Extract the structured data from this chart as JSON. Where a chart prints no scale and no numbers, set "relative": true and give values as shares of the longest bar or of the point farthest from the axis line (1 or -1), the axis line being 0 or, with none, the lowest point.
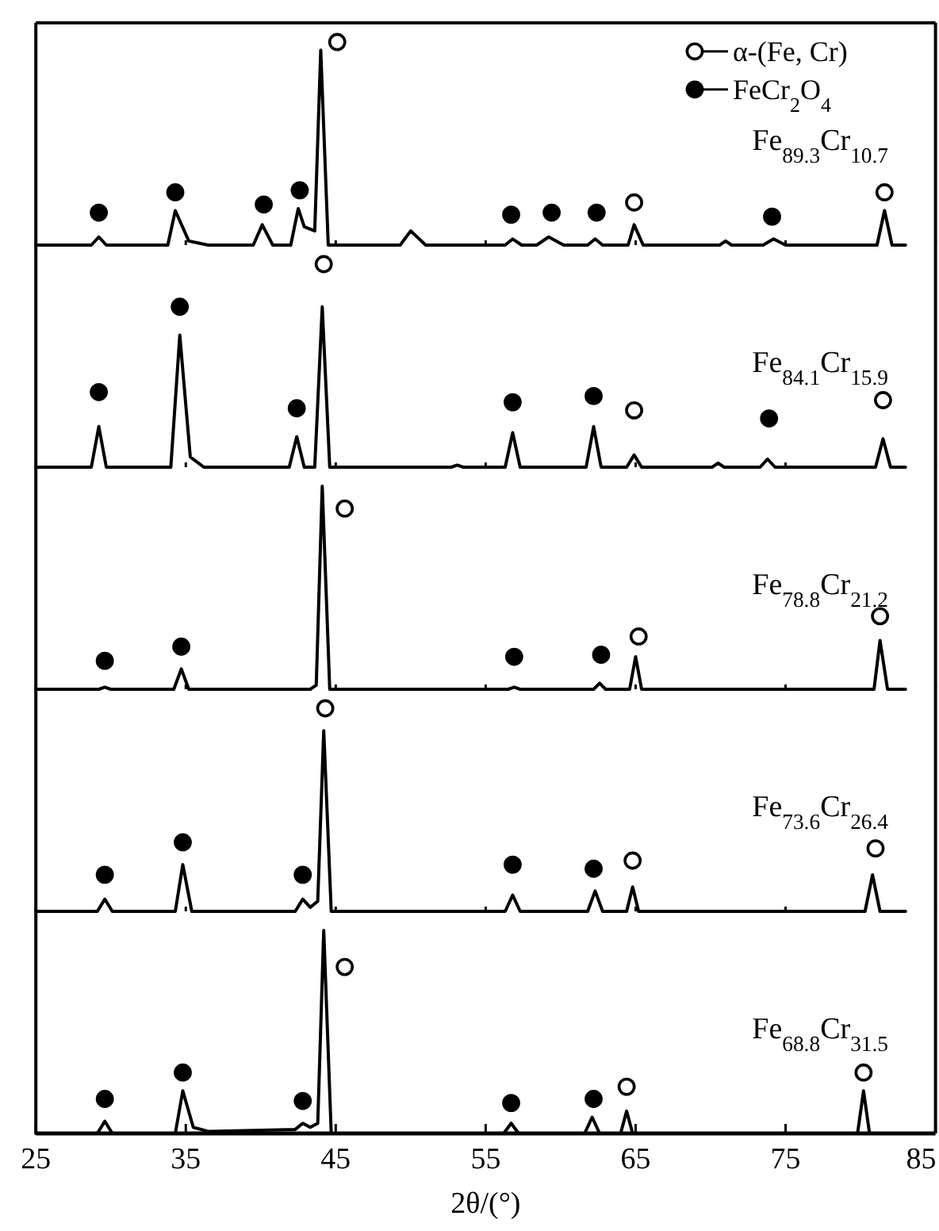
{
  "chart_data": [
    {
      "type": "line",
      "title": "Fe$_{89.3}$Cr$_{10.7}$",
      "xlim": [
        25,
        85
      ],
      "xticks": [
        25,
        35,
        45,
        55,
        65,
        75,
        85
      ],
      "relative": true,
      "tick_labels": false,
      "legend": "top right",
      "series": [
        {
          "color": "#000000",
          "x": [
            25,
            28.7,
            29.2,
            29.7,
            33.8,
            34.3,
            35.2,
            36.5,
            39.5,
            40.1,
            40.8,
            42.0,
            42.5,
            42.9,
            43.6,
            44.0,
            44.5,
            49.3,
            50.0,
            51.0,
            56.3,
            56.8,
            57.4,
            58.4,
            59.2,
            60.2,
            61.8,
            62.3,
            62.8,
            64.5,
            64.9,
            65.5,
            70.6,
            71.0,
            71.4,
            73.5,
            74.2,
            75.0,
            81.1,
            81.6,
            82.1,
            83
          ],
          "values": [
            0,
            0,
            0.04,
            0,
            0,
            0.17,
            0.02,
            0,
            0,
            0.1,
            0,
            0,
            0.18,
            0.09,
            0.07,
            0.96,
            0,
            0,
            0.07,
            0,
            0,
            0.03,
            0,
            0,
            0.04,
            0,
            0,
            0.03,
            0,
            0,
            0.1,
            0,
            0,
            0.02,
            0,
            0,
            0.03,
            0,
            0,
            0.17,
            0,
            0
          ]
        },
        {
          "type": "scatter",
          "name": "α-(Fe, Cr)",
          "marker": "circle",
          "color": "#ffffff",
          "x": [
            45.1,
            64.9,
            81.6
          ],
          "values": [
            1.0,
            0.21,
            0.26
          ]
        },
        {
          "type": "scatter",
          "name": "FeCr$_{2}$O$_{4}$",
          "marker": "circle",
          "color": "#000000",
          "x": [
            29.2,
            34.3,
            40.2,
            42.6,
            56.7,
            59.4,
            62.4,
            74.1
          ],
          "values": [
            0.16,
            0.26,
            0.2,
            0.27,
            0.15,
            0.16,
            0.16,
            0.14
          ]
        }
      ]
    },
    {
      "type": "line",
      "title": "Fe$_{84.1}$Cr$_{15.9}$",
      "xlim": [
        25,
        85
      ],
      "xticks": [
        25,
        35,
        45,
        55,
        65,
        75,
        85
      ],
      "relative": true,
      "tick_labels": false,
      "series": [
        {
          "color": "#000000",
          "x": [
            25,
            28.7,
            29.2,
            29.7,
            34.0,
            34.6,
            35.3,
            36.2,
            41.9,
            42.4,
            42.9,
            43.6,
            44.1,
            44.6,
            52.7,
            53.1,
            53.5,
            56.3,
            56.8,
            57.3,
            61.7,
            62.2,
            62.7,
            64.4,
            64.9,
            65.4,
            70.1,
            70.5,
            70.9,
            73.3,
            73.8,
            74.3,
            81.0,
            81.5,
            82.0,
            83
          ],
          "values": [
            0,
            0,
            0.2,
            0,
            0,
            0.65,
            0.05,
            0,
            0,
            0.15,
            0,
            0,
            0.79,
            0,
            0,
            0.01,
            0,
            0,
            0.17,
            0,
            0,
            0.2,
            0,
            0,
            0.06,
            0,
            0,
            0.02,
            0,
            0,
            0.04,
            0,
            0,
            0.14,
            0,
            0
          ]
        },
        {
          "type": "scatter",
          "marker": "circle",
          "color": "#ffffff",
          "x": [
            44.2,
            64.9,
            81.5
          ],
          "values": [
            1.0,
            0.28,
            0.33
          ]
        },
        {
          "type": "scatter",
          "marker": "circle",
          "color": "#000000",
          "x": [
            29.2,
            34.6,
            42.4,
            56.8,
            62.2,
            73.9
          ],
          "values": [
            0.37,
            0.79,
            0.29,
            0.32,
            0.35,
            0.24
          ]
        }
      ]
    },
    {
      "type": "line",
      "title": "Fe$_{78.8}$Cr$_{21.2}$",
      "xlim": [
        25,
        85
      ],
      "xticks": [
        25,
        35,
        45,
        55,
        65,
        75,
        85
      ],
      "relative": true,
      "tick_labels": false,
      "series": [
        {
          "color": "#000000",
          "x": [
            25,
            29.2,
            29.6,
            30.0,
            34.2,
            34.7,
            35.2,
            43.3,
            43.7,
            44.1,
            44.6,
            56.5,
            56.9,
            57.3,
            62.2,
            62.6,
            63.0,
            64.6,
            65.0,
            65.4,
            80.9,
            81.3,
            81.8,
            83
          ],
          "values": [
            0,
            0,
            0.01,
            0,
            0,
            0.1,
            0,
            0,
            0.02,
            1.0,
            0,
            0,
            0.01,
            0,
            0,
            0.03,
            0,
            0,
            0.16,
            0,
            0,
            0.24,
            0,
            0
          ]
        },
        {
          "type": "scatter",
          "marker": "circle",
          "color": "#ffffff",
          "x": [
            45.6,
            65.2,
            81.3
          ],
          "values": [
            0.89,
            0.26,
            0.36
          ]
        },
        {
          "type": "scatter",
          "marker": "circle",
          "color": "#000000",
          "x": [
            29.6,
            34.7,
            56.9,
            62.7
          ],
          "values": [
            0.14,
            0.21,
            0.16,
            0.17
          ]
        }
      ]
    },
    {
      "type": "line",
      "title": "Fe$_{73.6}$Cr$_{26.4}$",
      "xlim": [
        25,
        85
      ],
      "xticks": [
        25,
        35,
        45,
        55,
        65,
        75,
        85
      ],
      "relative": true,
      "tick_labels": false,
      "series": [
        {
          "color": "#000000",
          "x": [
            25,
            29.1,
            29.6,
            30.1,
            34.3,
            34.8,
            35.4,
            42.3,
            42.8,
            43.3,
            43.8,
            44.2,
            44.7,
            56.3,
            56.8,
            57.3,
            61.8,
            62.3,
            62.8,
            64.4,
            64.8,
            65.2,
            80.3,
            80.8,
            81.3,
            83
          ],
          "values": [
            0,
            0,
            0.06,
            0,
            0,
            0.23,
            0,
            0,
            0.06,
            0.02,
            0.05,
            0.89,
            0,
            0,
            0.08,
            0,
            0,
            0.1,
            0,
            0,
            0.12,
            0,
            0,
            0.18,
            0,
            0
          ]
        },
        {
          "type": "scatter",
          "marker": "circle",
          "color": "#ffffff",
          "x": [
            44.3,
            64.8,
            81.0
          ],
          "values": [
            1.0,
            0.25,
            0.31
          ]
        },
        {
          "type": "scatter",
          "marker": "circle",
          "color": "#000000",
          "x": [
            29.6,
            34.8,
            42.8,
            56.8,
            62.2
          ],
          "values": [
            0.18,
            0.34,
            0.18,
            0.23,
            0.21
          ]
        }
      ]
    },
    {
      "type": "line",
      "title": "Fe$_{68.8}$Cr$_{31.5}$",
      "xlabel": "2θ/(°)",
      "xlim": [
        25,
        85
      ],
      "xticks": [
        25,
        35,
        45,
        55,
        65,
        75,
        85
      ],
      "relative": true,
      "tick_labels": "x",
      "series": [
        {
          "color": "#000000",
          "x": [
            25,
            29.1,
            29.6,
            30.1,
            34.3,
            34.8,
            35.5,
            36.5,
            42.3,
            42.8,
            43.3,
            43.8,
            44.2,
            44.7,
            56.2,
            56.7,
            57.2,
            61.6,
            62.1,
            62.6,
            64.0,
            64.4,
            64.8,
            79.8,
            80.2,
            80.6,
            83
          ],
          "values": [
            0,
            0,
            0.06,
            0,
            0,
            0.21,
            0.03,
            0.01,
            0.02,
            0.05,
            0.03,
            0.05,
            1.0,
            0,
            0,
            0.05,
            0,
            0,
            0.08,
            0,
            0,
            0.11,
            0,
            0,
            0.21,
            0,
            0
          ]
        },
        {
          "type": "scatter",
          "marker": "circle",
          "color": "#ffffff",
          "x": [
            45.6,
            64.4,
            80.2
          ],
          "values": [
            0.82,
            0.23,
            0.3
          ]
        },
        {
          "type": "scatter",
          "marker": "circle",
          "color": "#000000",
          "x": [
            29.6,
            34.8,
            42.8,
            56.7,
            62.2
          ],
          "values": [
            0.17,
            0.3,
            0.16,
            0.15,
            0.17
          ]
        }
      ]
    }
  ]
}
